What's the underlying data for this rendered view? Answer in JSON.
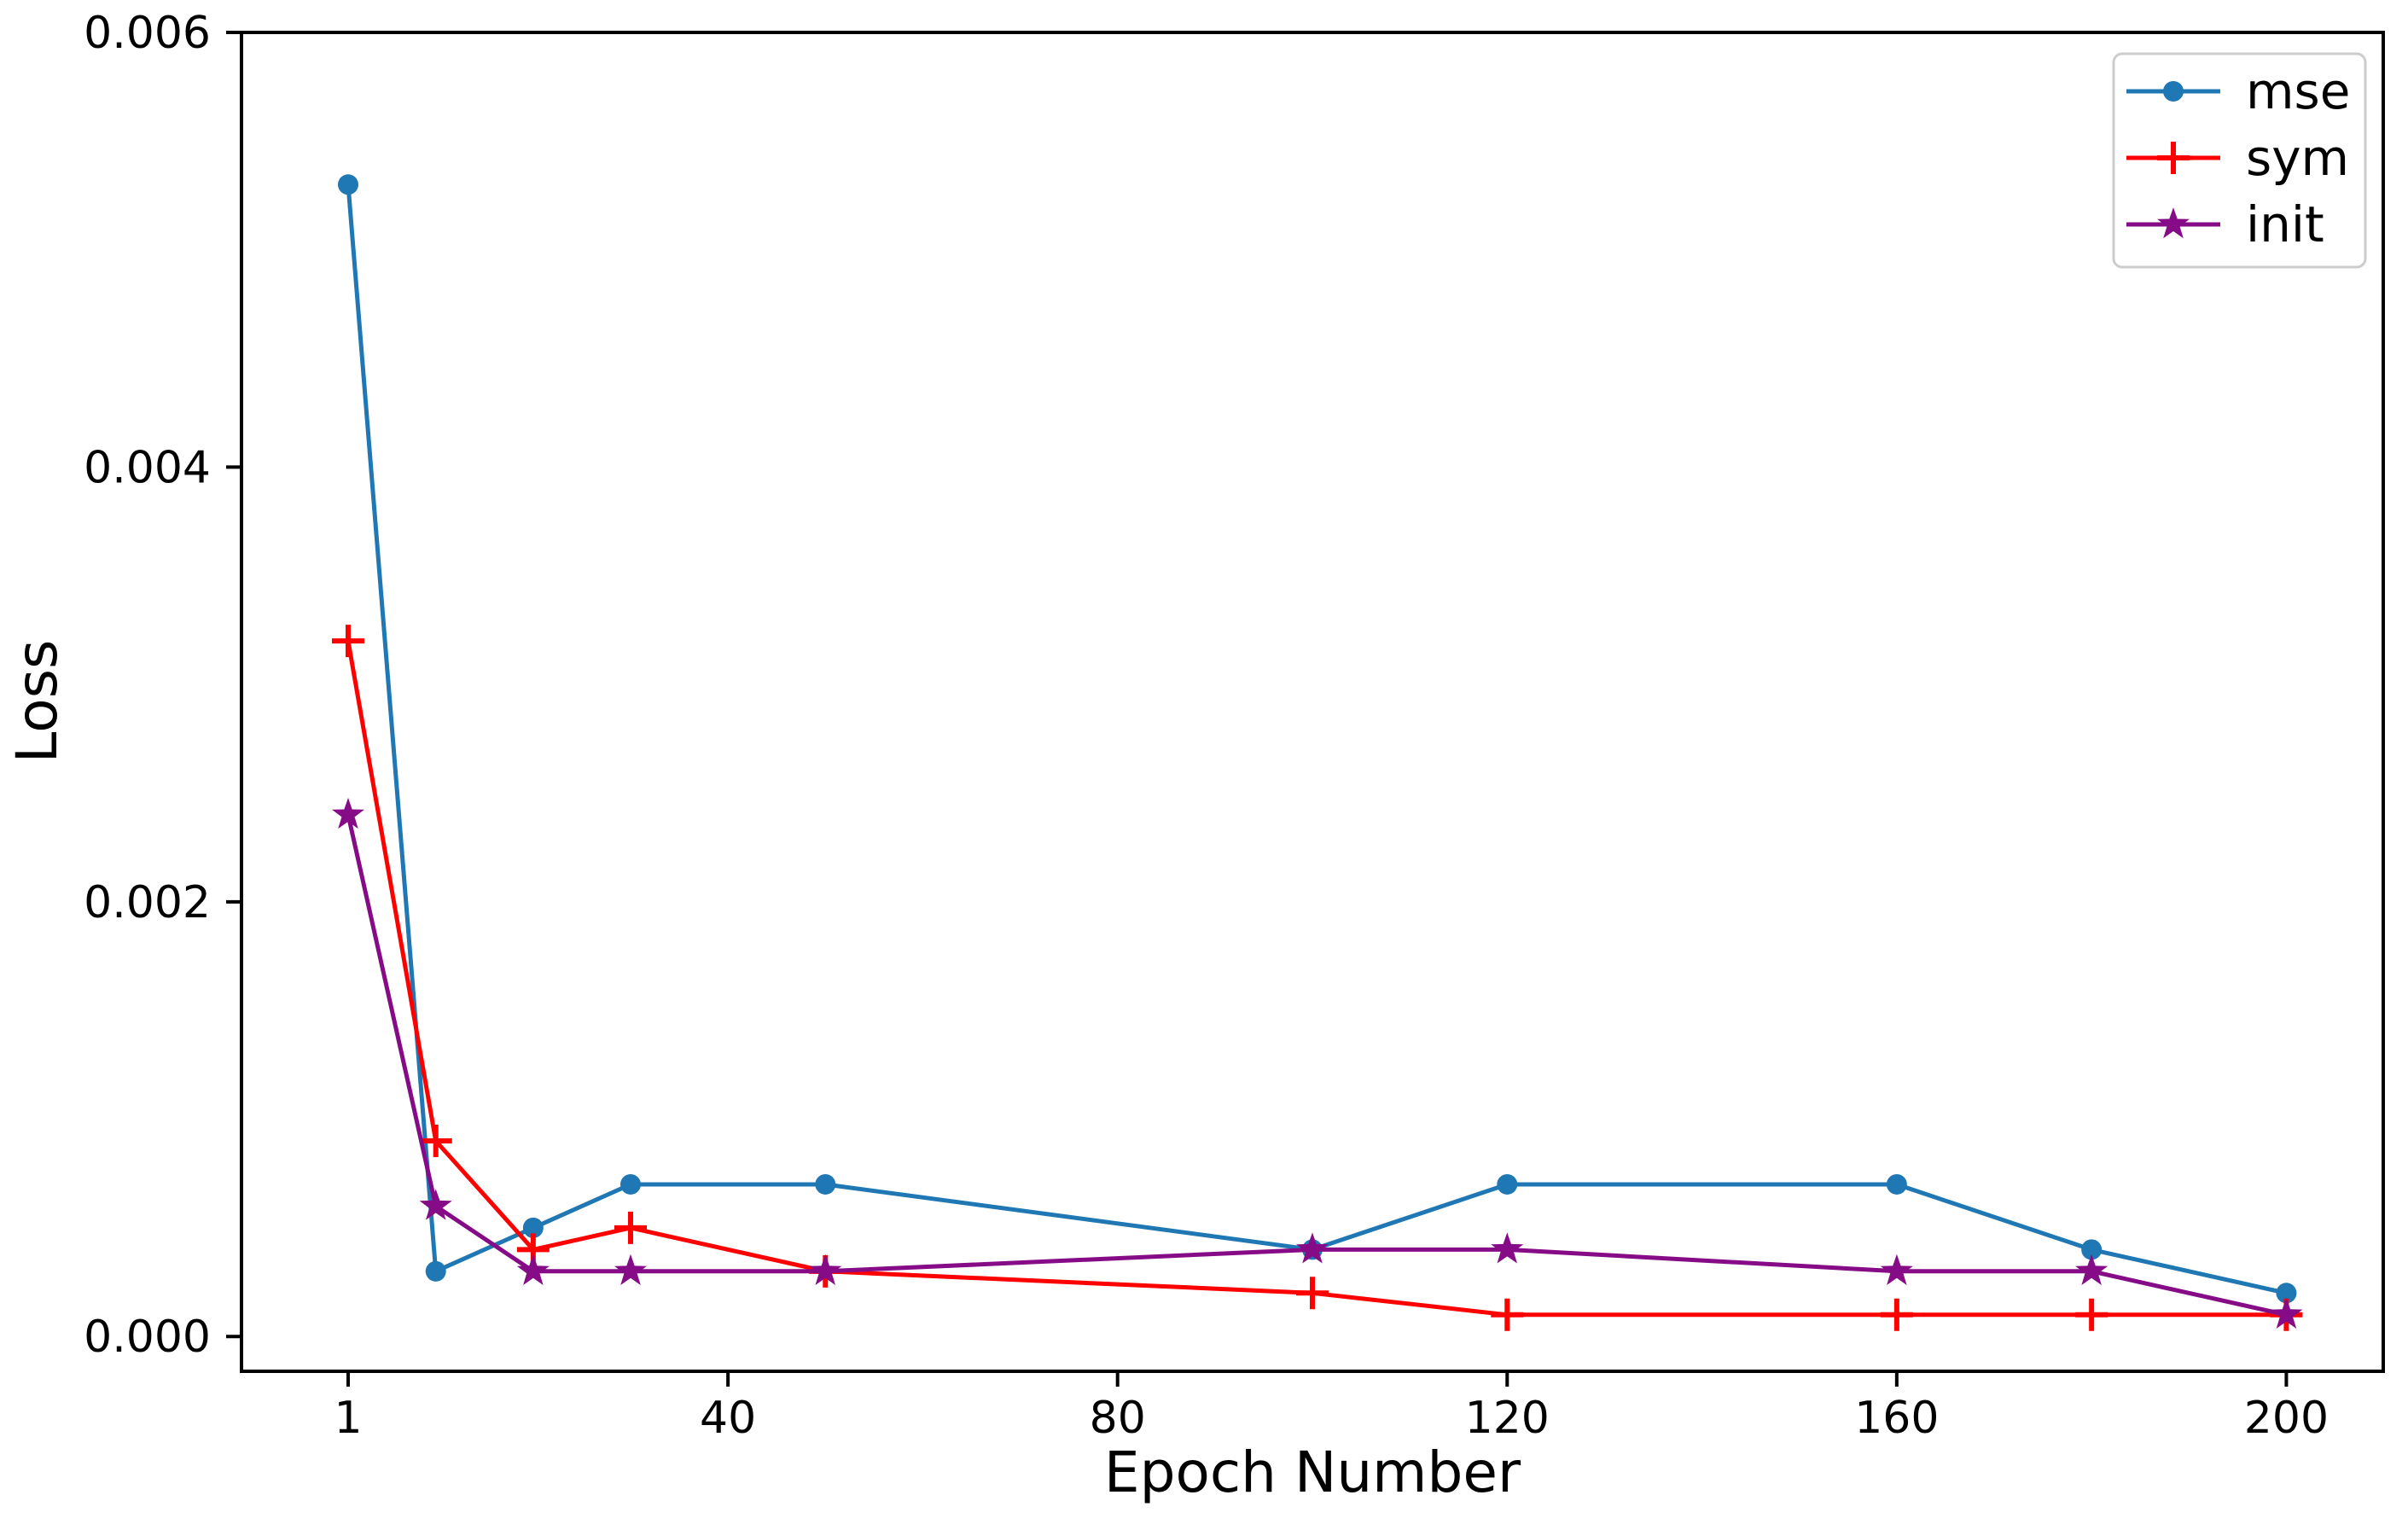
{
  "figure": {
    "background": "#ffffff",
    "axis_color": "#000000",
    "legend_border_color": "#cccccc",
    "legend_fill": "#ffffff"
  },
  "chart_data": {
    "type": "line",
    "title": "",
    "xlabel": "Epoch Number",
    "ylabel": "Loss",
    "x": [
      1,
      10,
      20,
      30,
      50,
      100,
      120,
      160,
      180,
      200
    ],
    "series": [
      {
        "name": "mse",
        "color": "#1f77b4",
        "marker": "circle",
        "values": [
          0.0053,
          0.0003,
          0.0005,
          0.0007,
          0.0007,
          0.0004,
          0.0007,
          0.0007,
          0.0004,
          0.0002
        ]
      },
      {
        "name": "sym",
        "color": "#ff0000",
        "marker": "plus",
        "values": [
          0.0032,
          0.0009,
          0.0004,
          0.0005,
          0.0003,
          0.0002,
          0.0001,
          0.0001,
          0.0001,
          0.0001
        ]
      },
      {
        "name": "init",
        "color": "#860b86",
        "marker": "star",
        "values": [
          0.0024,
          0.0006,
          0.0003,
          0.0003,
          0.0003,
          0.0004,
          0.0004,
          0.0003,
          0.0003,
          0.0001
        ]
      }
    ],
    "xticks": {
      "values": [
        1,
        40,
        80,
        120,
        160,
        200
      ],
      "labels": [
        "1",
        "40",
        "80",
        "120",
        "160",
        "200"
      ]
    },
    "yticks": {
      "values": [
        0,
        0.002,
        0.004,
        0.006
      ],
      "labels": [
        "0.000",
        "0.002",
        "0.004",
        "0.006"
      ]
    },
    "xlim": [
      -9.95,
      209.95
    ],
    "ylim": [
      -0.00016,
      0.006
    ],
    "grid": false,
    "legend": {
      "position": "upper right"
    }
  }
}
